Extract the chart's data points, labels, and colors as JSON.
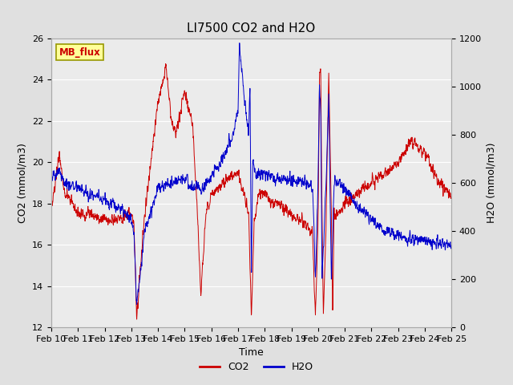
{
  "title": "LI7500 CO2 and H2O",
  "xlabel": "Time",
  "ylabel_left": "CO2 (mmol/m3)",
  "ylabel_right": "H2O (mmol/m3)",
  "ylim_left": [
    12,
    26
  ],
  "ylim_right": [
    0,
    1200
  ],
  "yticks_left": [
    12,
    14,
    16,
    18,
    20,
    22,
    24,
    26
  ],
  "yticks_right": [
    0,
    200,
    400,
    600,
    800,
    1000,
    1200
  ],
  "xtick_labels": [
    "Feb 10",
    "Feb 11",
    "Feb 12",
    "Feb 13",
    "Feb 14",
    "Feb 15",
    "Feb 16",
    "Feb 17",
    "Feb 18",
    "Feb 19",
    "Feb 20",
    "Feb 21",
    "Feb 22",
    "Feb 23",
    "Feb 24",
    "Feb 25"
  ],
  "co2_color": "#cc0000",
  "h2o_color": "#0000cc",
  "bg_color": "#e0e0e0",
  "plot_bg_color": "#ebebeb",
  "annotation_text": "MB_flux",
  "annotation_fg": "#cc0000",
  "annotation_bg": "#ffff99",
  "annotation_border": "#999900",
  "legend_co2": "CO2",
  "legend_h2o": "H2O",
  "title_fontsize": 11,
  "axis_label_fontsize": 9,
  "tick_fontsize": 8
}
